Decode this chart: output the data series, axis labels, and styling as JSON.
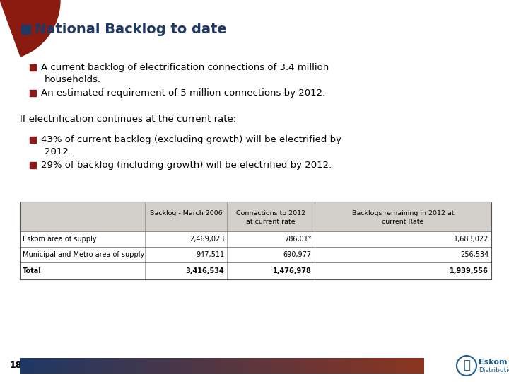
{
  "title": "National Backlog to date",
  "title_color": "#1F3864",
  "title_square_color": "#1F3864",
  "bullet_color": "#8B1A1A",
  "bullet1_line1": "A current backlog of electrification connections of 3.4 million",
  "bullet1_line2": "households.",
  "bullet2": "An estimated requirement of 5 million connections by 2012.",
  "intro_text": "If electrification continues at the current rate:",
  "bullet3_line1": "43% of current backlog (excluding growth) will be electrified by",
  "bullet3_line2": "2012.",
  "bullet4": "29% of backlog (including growth) will be electrified by 2012.",
  "table_headers_row1": [
    "",
    "Backlog - March 2006",
    "Connections to 2012",
    "Backlogs remaining in 2012 at"
  ],
  "table_headers_row2": [
    "",
    "",
    "at current rate",
    "current Rate"
  ],
  "table_rows": [
    [
      "Eskom area of supply",
      "2,469,023",
      "786,01*",
      "1,683,022"
    ],
    [
      "Municipal and Metro area of supply",
      "947,511",
      "690,977",
      "256,534"
    ],
    [
      "Total",
      "3,416,534",
      "1,476,978",
      "1,939,556"
    ]
  ],
  "table_header_bg": "#D3CFCB",
  "page_number": "18",
  "footer_gradient_left": "#1F3864",
  "footer_gradient_right": "#8B3520",
  "eskom_text_color": "#1F5C8B",
  "bg_color": "#FFFFFF",
  "slide_accent_color": "#8B1A10"
}
